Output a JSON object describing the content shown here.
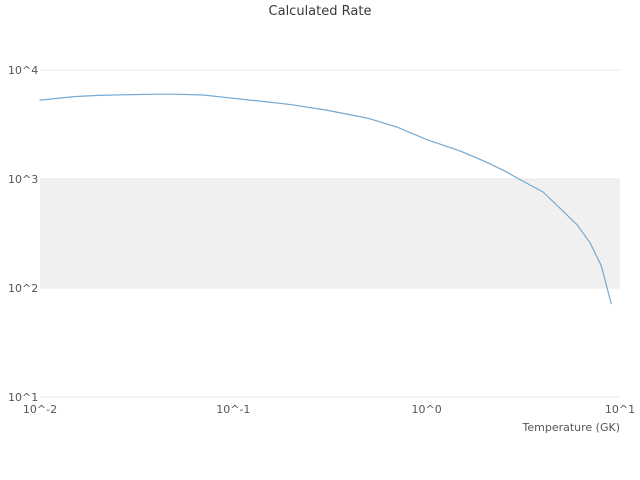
{
  "chart": {
    "title": "Calculated Rate",
    "x_axis_label": "Temperature (GK)"
  },
  "chart_data": {
    "type": "line",
    "title": "Calculated Rate",
    "xlabel": "Temperature (GK)",
    "ylabel": "",
    "x_scale": "log",
    "y_scale": "log",
    "xlim": [
      0.01,
      10
    ],
    "ylim": [
      10,
      10000
    ],
    "grid": true,
    "legend": "none",
    "x_ticks": [
      {
        "value": 0.01,
        "label": "10^-2"
      },
      {
        "value": 0.1,
        "label": "10^-1"
      },
      {
        "value": 1,
        "label": "10^0"
      },
      {
        "value": 10,
        "label": "10^1"
      }
    ],
    "y_ticks": [
      {
        "value": 10000,
        "label": "10^4"
      },
      {
        "value": 1000,
        "label": "10^3"
      },
      {
        "value": 100,
        "label": "10^2"
      },
      {
        "value": 10,
        "label": "10^1"
      }
    ],
    "shaded_band": {
      "y_min": 100,
      "y_max": 1000,
      "color": "#f0f0f0"
    },
    "colors": {
      "line": "#73a9d4",
      "grid": "#e8e8e8",
      "tick_text": "#555555"
    },
    "series": [
      {
        "name": "Calculated Rate",
        "x": [
          0.01,
          0.015,
          0.02,
          0.03,
          0.04,
          0.05,
          0.07,
          0.1,
          0.15,
          0.2,
          0.3,
          0.4,
          0.5,
          0.7,
          1.0,
          1.5,
          2.0,
          2.5,
          3.0,
          4.0,
          5.0,
          6.0,
          7.0,
          8.0,
          9.0
        ],
        "y": [
          5300,
          5700,
          5850,
          5950,
          6000,
          6000,
          5900,
          5500,
          5100,
          4800,
          4300,
          3900,
          3600,
          3000,
          2300,
          1800,
          1450,
          1200,
          1000,
          760,
          520,
          380,
          260,
          160,
          72
        ]
      }
    ]
  }
}
